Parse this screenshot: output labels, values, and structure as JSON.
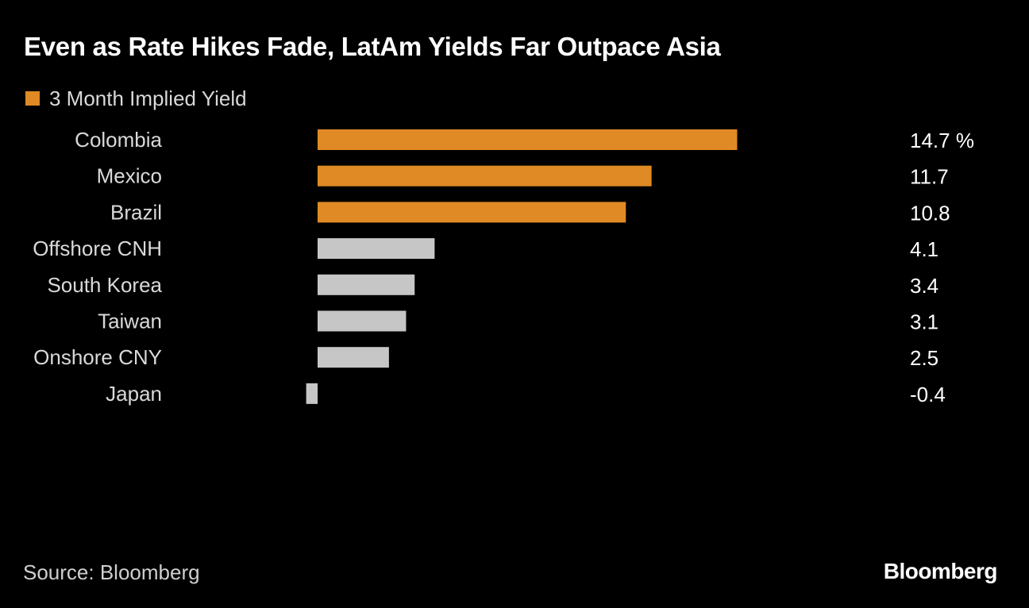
{
  "header": {
    "title": "Even as Rate Hikes Fade, LatAm Yields Far Outpace Asia"
  },
  "legend": {
    "label": "3 Month Implied Yield"
  },
  "footer": {
    "source": "Source: Bloomberg",
    "brand": "Bloomberg"
  },
  "colors": {
    "latam": "#e08a25",
    "asia": "#c6c6c6",
    "label": "#d9d9d9",
    "value": "#ffffff"
  },
  "chart_data": {
    "type": "bar",
    "orientation": "horizontal",
    "title": "Even as Rate Hikes Fade, LatAm Yields Far Outpace Asia",
    "series_name": "3 Month Implied Yield",
    "unit": "%",
    "categories": [
      "Colombia",
      "Mexico",
      "Brazil",
      "Offshore CNH",
      "South Korea",
      "Taiwan",
      "Onshore CNY",
      "Japan"
    ],
    "values": [
      14.7,
      11.7,
      10.8,
      4.1,
      3.4,
      3.1,
      2.5,
      -0.4
    ],
    "value_labels": [
      "14.7 %",
      "11.7",
      "10.8",
      "4.1",
      "3.4",
      "3.1",
      "2.5",
      "-0.4"
    ],
    "groups": [
      "latam",
      "latam",
      "latam",
      "asia",
      "asia",
      "asia",
      "asia",
      "asia"
    ],
    "xlim": [
      -0.4,
      14.7
    ],
    "grid": false,
    "legend_position": "top-left"
  }
}
